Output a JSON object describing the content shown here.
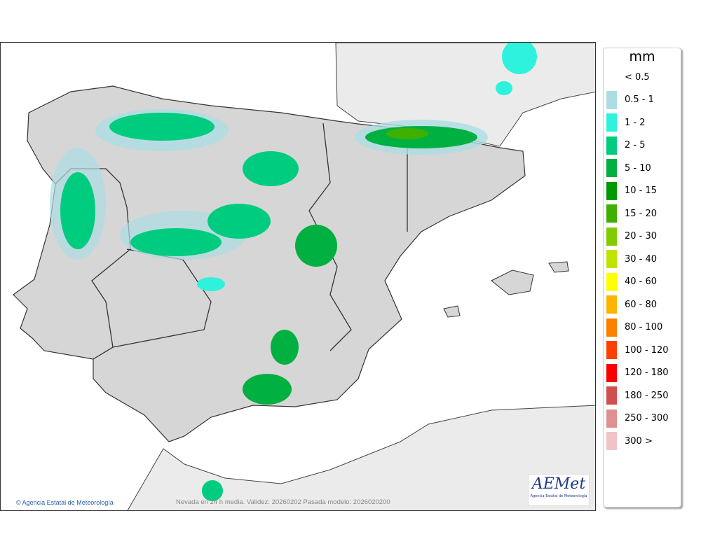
{
  "map": {
    "credit": "Agencia Estatal de Meteorología",
    "caption": "Nevada en 24 h media. Validez: 20260202 Pasada modelo: 2026020200",
    "logo_text": "AEMet",
    "logo_subtext": "Agencia Estatal de Meteorología"
  },
  "legend": {
    "unit": "mm",
    "items": [
      {
        "label": "< 0.5",
        "color": "#ffffff"
      },
      {
        "label": "0.5 - 1",
        "color": "#acdde3"
      },
      {
        "label": "1 - 2",
        "color": "#2ef2dc"
      },
      {
        "label": "2 - 5",
        "color": "#00cc80"
      },
      {
        "label": "5 - 10",
        "color": "#00b040"
      },
      {
        "label": "10 - 15",
        "color": "#009a00"
      },
      {
        "label": "15 - 20",
        "color": "#40b000"
      },
      {
        "label": "20 - 30",
        "color": "#80cc00"
      },
      {
        "label": "30 - 40",
        "color": "#c0e400"
      },
      {
        "label": "40 - 60",
        "color": "#ffff00"
      },
      {
        "label": "60 - 80",
        "color": "#ffb400"
      },
      {
        "label": "80 - 100",
        "color": "#ff8000"
      },
      {
        "label": "100 - 120",
        "color": "#ff4000"
      },
      {
        "label": "120 - 180",
        "color": "#ff0000"
      },
      {
        "label": "180 - 250",
        "color": "#d05050"
      },
      {
        "label": "250 - 300",
        "color": "#e09090"
      },
      {
        "label": "300 >",
        "color": "#f0c4c4"
      }
    ]
  }
}
